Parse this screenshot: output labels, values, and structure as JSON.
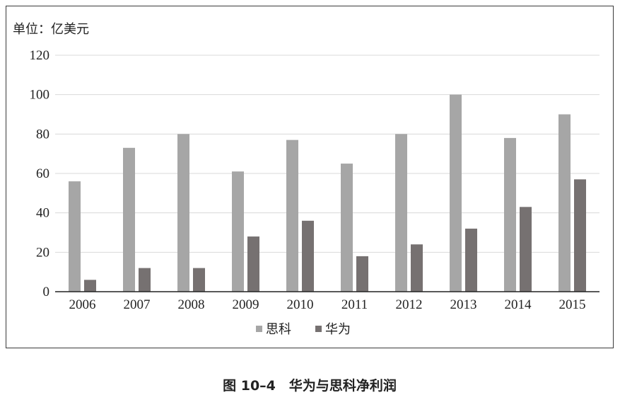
{
  "chart_data": {
    "type": "bar",
    "unit_label": "单位：亿美元",
    "caption": "图 10–4　华为与思科净利润",
    "categories": [
      "2006",
      "2007",
      "2008",
      "2009",
      "2010",
      "2011",
      "2012",
      "2013",
      "2014",
      "2015"
    ],
    "series": [
      {
        "name": "思科",
        "color": "#a6a6a6",
        "values": [
          56,
          73,
          80,
          61,
          77,
          65,
          80,
          100,
          78,
          90
        ]
      },
      {
        "name": "华为",
        "color": "#767171",
        "values": [
          6,
          12,
          12,
          28,
          36,
          18,
          24,
          32,
          43,
          57
        ]
      }
    ],
    "y_ticks": [
      "0",
      "20",
      "40",
      "60",
      "80",
      "100",
      "120"
    ],
    "ylim": [
      0,
      120
    ],
    "grid": true,
    "gridline_color": "#d9d9d9",
    "legend_position": "bottom"
  }
}
